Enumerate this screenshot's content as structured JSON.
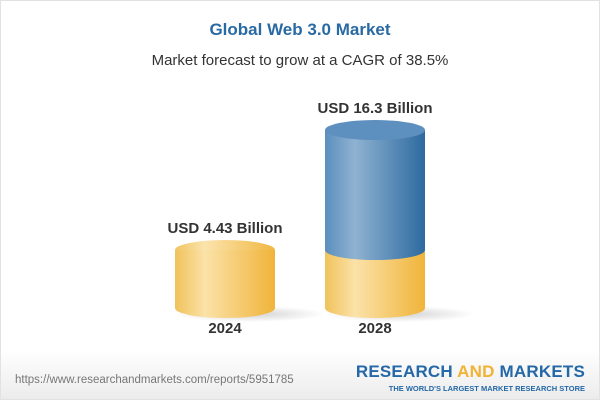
{
  "chart_data": {
    "type": "bar",
    "style": "3d-cylinder",
    "title": "Global Web 3.0 Market",
    "subtitle": "Market forecast to grow at a CAGR of 38.5%",
    "categories": [
      "2024",
      "2028"
    ],
    "values": [
      4.43,
      16.3
    ],
    "data_labels": [
      "USD 4.43 Billion",
      "USD 16.3 Billion"
    ],
    "unit": "USD Billion",
    "colors": {
      "base": "#f2c45c",
      "growth": "#4f86b8",
      "title": "#2a6aa3"
    },
    "grid": false
  },
  "footer": {
    "url": "https://www.researchandmarkets.com/reports/5951785",
    "logo": {
      "part1": "RESEARCH ",
      "part2": "AND",
      "part3": " MARKETS",
      "tagline": "THE WORLD'S LARGEST MARKET RESEARCH STORE"
    }
  }
}
